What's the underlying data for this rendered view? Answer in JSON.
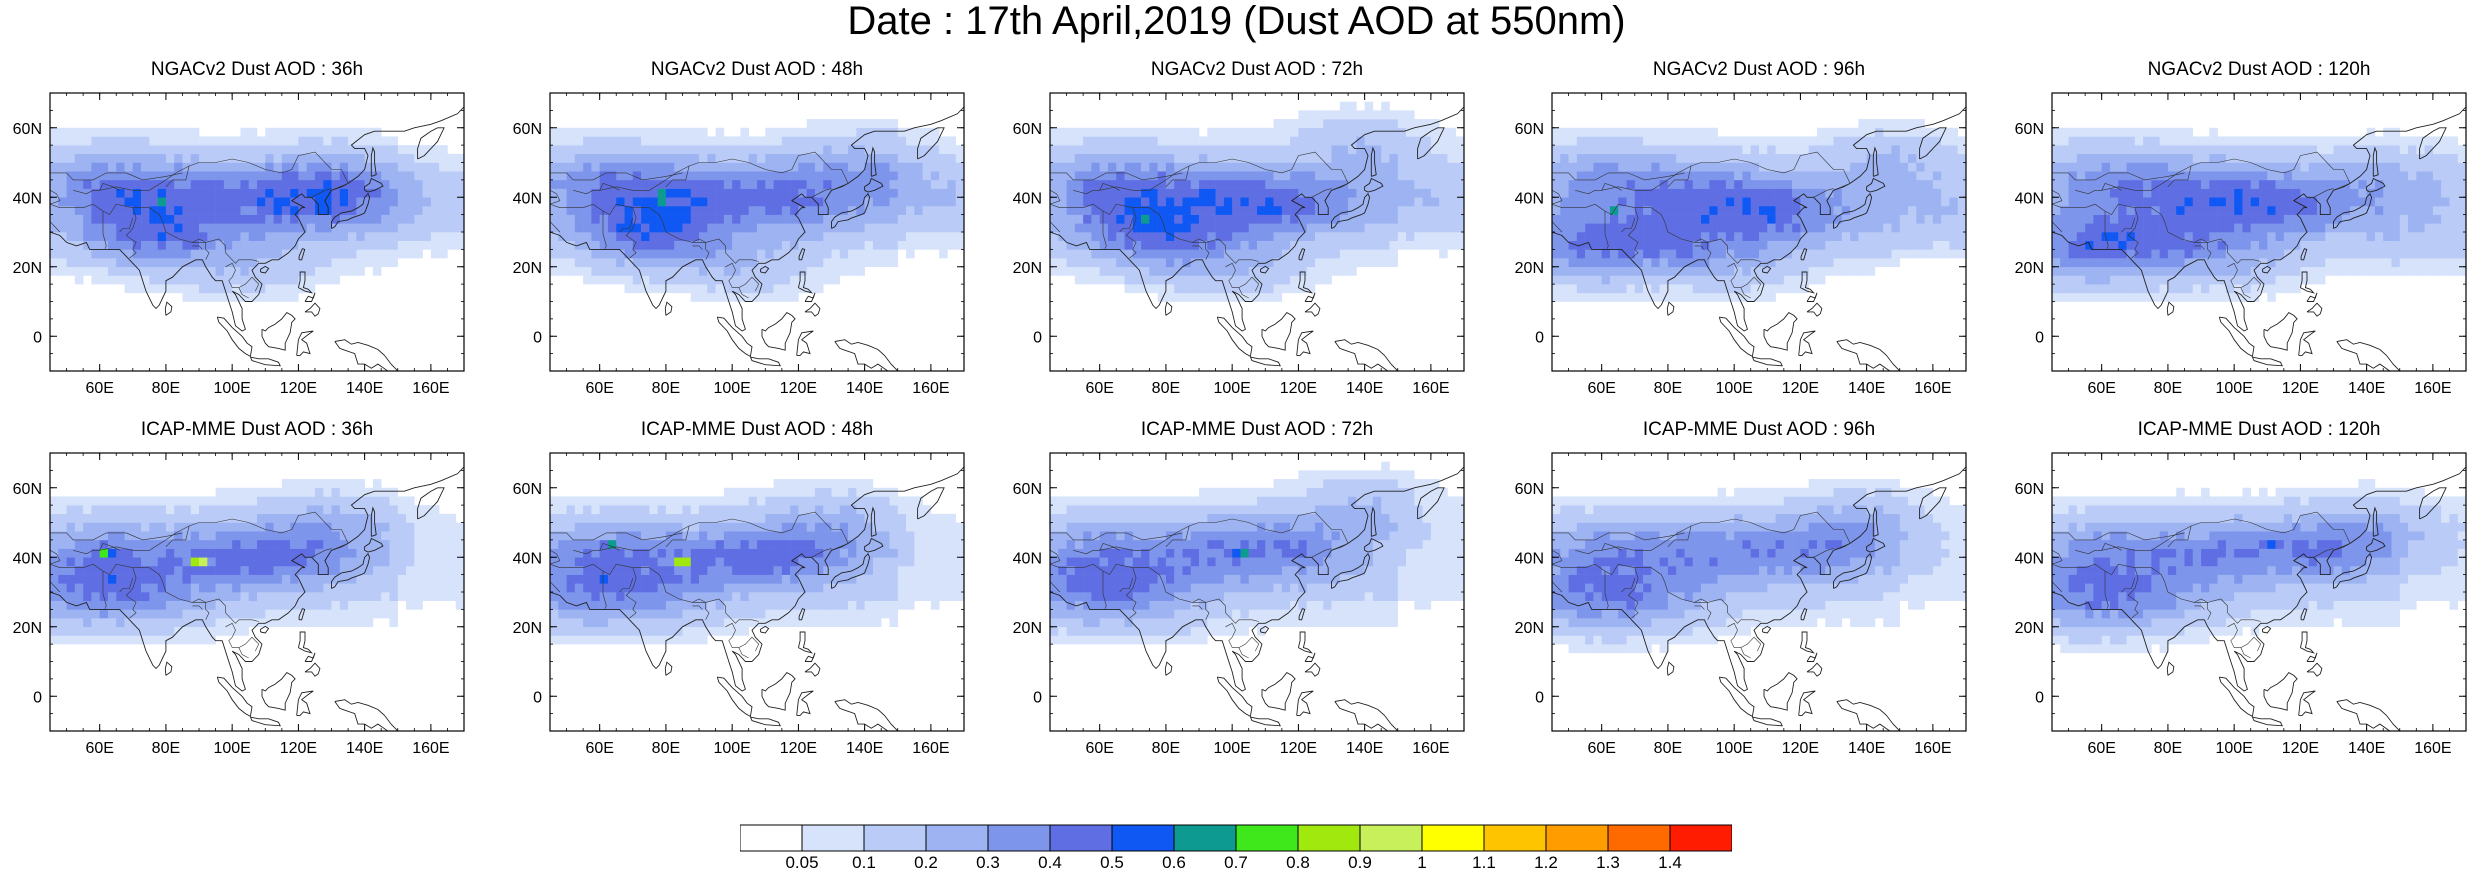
{
  "title": "Date : 17th April,2019 (Dust AOD at 550nm)",
  "map_extent": {
    "lon": [
      45,
      170
    ],
    "lat": [
      -10,
      70
    ]
  },
  "lat_ticks": [
    {
      "value": 60,
      "label": "60N"
    },
    {
      "value": 40,
      "label": "40N"
    },
    {
      "value": 20,
      "label": "20N"
    },
    {
      "value": 0,
      "label": "0"
    }
  ],
  "lon_ticks": [
    {
      "value": 60,
      "label": "60E"
    },
    {
      "value": 80,
      "label": "80E"
    },
    {
      "value": 100,
      "label": "100E"
    },
    {
      "value": 120,
      "label": "120E"
    },
    {
      "value": 140,
      "label": "140E"
    },
    {
      "value": 160,
      "label": "160E"
    }
  ],
  "panels": [
    {
      "title": "NGACv2 Dust AOD : 36h",
      "model": "NGACv2",
      "lead": "36h",
      "blobs": [
        [
          60,
          45,
          0.22
        ],
        [
          90,
          42,
          0.2
        ],
        [
          120,
          38,
          0.25
        ],
        [
          130,
          45,
          0.18
        ],
        [
          80,
          28,
          0.18
        ],
        [
          70,
          32,
          0.2
        ],
        [
          150,
          38,
          0.12
        ],
        [
          105,
          20,
          0.12
        ]
      ],
      "peaks": [
        [
          79,
          40,
          0.85
        ],
        [
          62,
          30,
          0.35
        ],
        [
          110,
          35,
          0.4
        ]
      ]
    },
    {
      "title": "NGACv2 Dust AOD : 48h",
      "model": "NGACv2",
      "lead": "48h",
      "blobs": [
        [
          60,
          45,
          0.22
        ],
        [
          90,
          42,
          0.22
        ],
        [
          120,
          40,
          0.25
        ],
        [
          140,
          50,
          0.15
        ],
        [
          80,
          28,
          0.18
        ],
        [
          70,
          32,
          0.2
        ],
        [
          160,
          40,
          0.12
        ],
        [
          105,
          20,
          0.12
        ]
      ],
      "peaks": [
        [
          79,
          40,
          0.82
        ],
        [
          65,
          30,
          0.33
        ],
        [
          115,
          38,
          0.35
        ]
      ]
    },
    {
      "title": "NGACv2 Dust AOD : 72h",
      "model": "NGACv2",
      "lead": "72h",
      "blobs": [
        [
          60,
          45,
          0.22
        ],
        [
          90,
          42,
          0.2
        ],
        [
          115,
          38,
          0.3
        ],
        [
          140,
          55,
          0.14
        ],
        [
          80,
          28,
          0.18
        ],
        [
          70,
          32,
          0.22
        ],
        [
          155,
          40,
          0.12
        ],
        [
          100,
          20,
          0.14
        ]
      ],
      "peaks": [
        [
          78,
          40,
          0.72
        ],
        [
          68,
          38,
          0.45
        ],
        [
          105,
          35,
          0.35
        ]
      ]
    },
    {
      "title": "NGACv2 Dust AOD : 96h",
      "model": "NGACv2",
      "lead": "96h",
      "blobs": [
        [
          60,
          45,
          0.22
        ],
        [
          90,
          42,
          0.22
        ],
        [
          115,
          36,
          0.28
        ],
        [
          150,
          50,
          0.15
        ],
        [
          80,
          28,
          0.2
        ],
        [
          55,
          25,
          0.3
        ],
        [
          160,
          35,
          0.12
        ],
        [
          100,
          22,
          0.14
        ]
      ],
      "peaks": [
        [
          64,
          37,
          0.72
        ],
        [
          79,
          40,
          0.65
        ],
        [
          52,
          25,
          0.45
        ],
        [
          95,
          28,
          0.35
        ]
      ]
    },
    {
      "title": "NGACv2 Dust AOD : 120h",
      "model": "NGACv2",
      "lead": "120h",
      "blobs": [
        [
          60,
          45,
          0.22
        ],
        [
          90,
          42,
          0.22
        ],
        [
          115,
          38,
          0.28
        ],
        [
          150,
          45,
          0.15
        ],
        [
          80,
          28,
          0.2
        ],
        [
          55,
          25,
          0.32
        ],
        [
          160,
          30,
          0.12
        ],
        [
          100,
          22,
          0.14
        ]
      ],
      "peaks": [
        [
          52,
          25,
          0.5
        ],
        [
          70,
          30,
          0.4
        ],
        [
          90,
          38,
          0.35
        ],
        [
          110,
          38,
          0.35
        ]
      ]
    },
    {
      "title": "ICAP-MME Dust AOD : 36h",
      "model": "ICAP-MME",
      "lead": "36h",
      "blobs": [
        [
          60,
          42,
          0.2
        ],
        [
          95,
          40,
          0.22
        ],
        [
          120,
          40,
          0.2
        ],
        [
          75,
          28,
          0.15
        ],
        [
          55,
          30,
          0.2
        ],
        [
          130,
          50,
          0.14
        ]
      ],
      "peaks": [
        [
          62,
          42,
          0.85
        ],
        [
          90,
          39,
          1.1
        ],
        [
          100,
          40,
          0.5
        ],
        [
          55,
          38,
          0.5
        ]
      ]
    },
    {
      "title": "ICAP-MME Dust AOD : 48h",
      "model": "ICAP-MME",
      "lead": "48h",
      "blobs": [
        [
          60,
          42,
          0.2
        ],
        [
          95,
          40,
          0.22
        ],
        [
          120,
          40,
          0.2
        ],
        [
          75,
          28,
          0.15
        ],
        [
          55,
          30,
          0.2
        ],
        [
          130,
          50,
          0.14
        ]
      ],
      "peaks": [
        [
          63,
          43,
          0.72
        ],
        [
          85,
          39,
          1.05
        ],
        [
          95,
          40,
          0.55
        ],
        [
          60,
          38,
          0.55
        ]
      ]
    },
    {
      "title": "ICAP-MME Dust AOD : 72h",
      "model": "ICAP-MME",
      "lead": "72h",
      "blobs": [
        [
          60,
          42,
          0.2
        ],
        [
          95,
          42,
          0.22
        ],
        [
          120,
          42,
          0.2
        ],
        [
          75,
          28,
          0.15
        ],
        [
          55,
          30,
          0.2
        ],
        [
          140,
          55,
          0.14
        ]
      ],
      "peaks": [
        [
          103,
          41,
          0.75
        ],
        [
          85,
          40,
          0.5
        ],
        [
          60,
          38,
          0.45
        ],
        [
          50,
          25,
          0.4
        ]
      ]
    },
    {
      "title": "ICAP-MME Dust AOD : 96h",
      "model": "ICAP-MME",
      "lead": "96h",
      "blobs": [
        [
          60,
          42,
          0.2
        ],
        [
          95,
          42,
          0.22
        ],
        [
          125,
          42,
          0.2
        ],
        [
          75,
          28,
          0.15
        ],
        [
          55,
          28,
          0.22
        ],
        [
          140,
          50,
          0.14
        ]
      ],
      "peaks": [
        [
          90,
          41,
          0.45
        ],
        [
          110,
          42,
          0.42
        ],
        [
          50,
          28,
          0.4
        ]
      ]
    },
    {
      "title": "ICAP-MME Dust AOD : 120h",
      "model": "ICAP-MME",
      "lead": "120h",
      "blobs": [
        [
          60,
          42,
          0.2
        ],
        [
          95,
          42,
          0.22
        ],
        [
          125,
          42,
          0.22
        ],
        [
          75,
          28,
          0.15
        ],
        [
          55,
          28,
          0.22
        ],
        [
          145,
          48,
          0.14
        ]
      ],
      "peaks": [
        [
          112,
          44,
          0.65
        ],
        [
          95,
          41,
          0.45
        ],
        [
          50,
          27,
          0.45
        ]
      ]
    }
  ],
  "colorbar": {
    "labels": [
      "0.05",
      "0.1",
      "0.2",
      "0.3",
      "0.4",
      "0.5",
      "0.6",
      "0.7",
      "0.8",
      "0.9",
      "1",
      "1.1",
      "1.2",
      "1.3",
      "1.4"
    ],
    "colors": [
      "#ffffff",
      "#d7e3fb",
      "#b9cbf6",
      "#9db3f2",
      "#7e95ec",
      "#5f6fe3",
      "#1058f4",
      "#0d9a90",
      "#3fe81a",
      "#a1e80e",
      "#c8f05a",
      "#ffff00",
      "#ffc400",
      "#ff9c00",
      "#ff6a00",
      "#ff1c00"
    ]
  }
}
